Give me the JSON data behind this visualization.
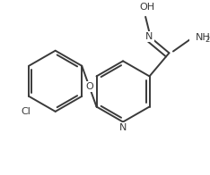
{
  "bg_color": "#ffffff",
  "line_color": "#3a3a3a",
  "line_width": 1.4,
  "font_size": 8.0,
  "figsize": [
    2.34,
    1.96
  ],
  "dpi": 100,
  "xlim": [
    0,
    234
  ],
  "ylim": [
    0,
    196
  ]
}
